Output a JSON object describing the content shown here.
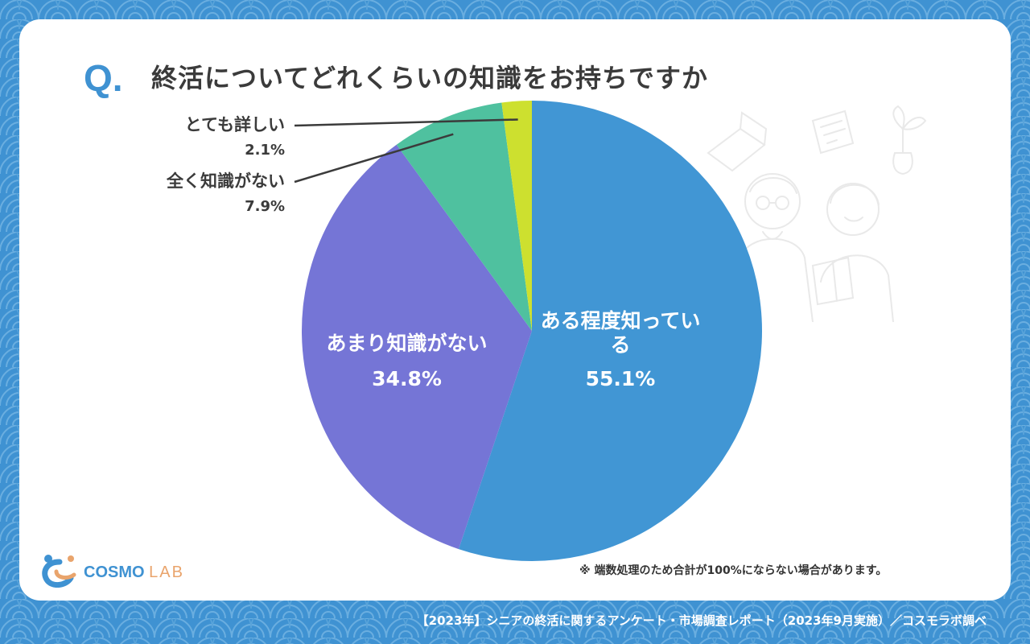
{
  "question_mark": "Q.",
  "title": "終活についてどれくらいの知識をお持ちですか",
  "note": "※ 端数処理のため合計が100%にならない場合があります。",
  "footer": "【2023年】シニアの終活に関するアンケート・市場調査レポート（2023年9月実施）／コスモラボ調べ",
  "logo": {
    "part1": "COSMO",
    "part2": "LAB"
  },
  "colors": {
    "background": "#3f92d2",
    "accent": "#3f92d2",
    "logo_orange": "#e9a46c"
  },
  "chart_data": {
    "type": "pie",
    "title": "終活についてどれくらいの知識をお持ちですか",
    "start": "12 o'clock",
    "direction": "clockwise",
    "slices": [
      {
        "label": "ある程度知っている",
        "value": 55.1,
        "value_text": "55.1%",
        "color": "#4196d4",
        "label_placement": "inside"
      },
      {
        "label": "あまり知識がない",
        "value": 34.8,
        "value_text": "34.8%",
        "color": "#7575d6",
        "label_placement": "inside"
      },
      {
        "label": "全く知識がない",
        "value": 7.9,
        "value_text": "7.9%",
        "color": "#4fc19f",
        "label_placement": "outside-left"
      },
      {
        "label": "とても詳しい",
        "value": 2.1,
        "value_text": "2.1%",
        "color": "#cde02f",
        "label_placement": "outside-left"
      }
    ]
  }
}
